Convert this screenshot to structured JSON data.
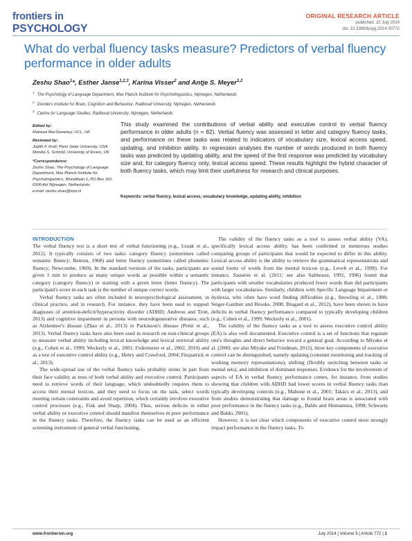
{
  "header": {
    "logo_top": "frontiers",
    "logo_in": "in",
    "logo_bottom": "PSYCHOLOGY",
    "article_type": "ORIGINAL RESEARCH ARTICLE",
    "published": "published: 22 July 2014",
    "doi": "doi: 10.3389/fpsyg.2014.00772"
  },
  "title": "What do verbal fluency tasks measure? Predictors of verbal fluency performance in older adults",
  "authors": "Zeshu Shao¹*, Esther Janse¹ʲ·³, Karina Visser² and Antje S. Meyer¹ʲ",
  "authors_plain": "Zeshu Shao 1*, Esther Janse 1,2,3, Karina Visser 2 and Antje S. Meyer 1,2",
  "affiliations": [
    {
      "num": "1",
      "text": "The Psychology of Language Department, Max Planck Institute for Psycholinguistics, Nijmegen, Netherlands"
    },
    {
      "num": "2",
      "text": "Donders Institute for Brain, Cognition and Behaviour, Radboud University, Nijmegen, Netherlands"
    },
    {
      "num": "3",
      "text": "Centre for Language Studies, Radboud University, Nijmegen, Netherlands"
    }
  ],
  "sidebar": {
    "edited_by_head": "Edited by:",
    "edited_by": "Mairead MacSweeney, UCL, UK",
    "reviewed_by_head": "Reviewed by:",
    "reviewer1": "Judith F. Kroll, Penn State University, USA",
    "reviewer2": "Monika S. Schmid, University of Essex, UK",
    "correspondence_head": "*Correspondence:",
    "correspondence": "Zeshu Shao, The Psychology of Language Department, Max Planck Institute for Psycholinguistics, Wundtlaan 1, PO Box 310, 6500 AH Nijmegen, Netherlands",
    "email": "e-mail: zeshu.shao@mpi.nl"
  },
  "abstract": "This study examined the contributions of verbal ability and executive control to verbal fluency performance in older adults (n = 82). Verbal fluency was assessed in letter and category fluency tasks, and performance on these tasks was related to indicators of vocabulary size, lexical access speed, updating, and inhibition ability. In regression analyses the number of words produced in both fluency tasks was predicted by updating ability, and the speed of the first response was predicted by vocabulary size and, for category fluency only, lexical access speed. These results highlight the hybrid character of both fluency tasks, which may limit their usefulness for research and clinical purposes.",
  "keywords_label": "Keywords:",
  "keywords": "verbal fluency, lexical access, vocabulary knowledge, updating ability, inhibition",
  "body": {
    "intro_head": "INTRODUCTION",
    "left": [
      "The verbal fluency test is a short test of verbal functioning (e.g., Lezak et al., 2012). It typically consists of two tasks: category fluency (sometimes called semantic fluency; Benton, 1968) and letter fluency (sometimes called phonemic fluency; Newcombe, 1969). In the standard versions of the tasks, participants are given 1 min to produce as many unique words as possible within a semantic category (category fluency) or starting with a given letter (letter fluency). The participant's score in each task is the number of unique correct words.",
      "Verbal fluency tasks are often included in neuropsychological assessment, in clinical practice, and in research. For instance, they have been used to support diagnoses of attention-deficit/hyperactivity disorder (ADHD; Andreou and Trott, 2013) and cognitive impairment in persons with neurodegenerative diseases, such as Alzheimer's disease (Zhao et al., 2013) or Parkinson's disease (Pettit et al., 2013). Verbal fluency tasks have also been used in research on non-clinical groups to measure verbal ability including lexical knowledge and lexical retrieval ability (e.g., Cohen et al., 1999; Weckerly et al., 2001; Federmeier et al., 2002, 2010) and as a test of executive control ability (e.g., Henry and Crawford, 2004; Fitzpatrick et al., 2013).",
      "The wide-spread use of the verbal fluency tasks probably stems in part from their face validity as tests of both verbal ability and executive control: Participants need to retrieve words of their language, which undoubtedly requires them to access their mental lexicon, and they need to focus on the task, select words meeting certain constraints and avoid repetition, which certainly involves executive control processes (e.g., Fisk and Sharp, 2004). Thus, serious deficits in either verbal ability or executive control should manifest themselves in poor performance in the fluency tasks. Therefore, the fluency tasks can be used as an efficient screening instrument of general verbal functioning."
    ],
    "right": [
      "The validity of the fluency tasks as a tool to assess verbal ability (VA), specifically lexical access ability, has been confirmed in numerous studies comparing groups of participants that would be expected to differ in this ability. Lexical access ability is the ability to retrieve the grammatical representations and sound forms of words from the mental lexicon (e.g., Levelt et al., 1999). For instance, Sauséon et al. (2011; see also Salthouse, 1991, 1996) found that participants with smaller vocabularies produced fewer words than did participants with larger vocabularies. Similarly, children with Specific Language Impairment or dyslexia, who often have word finding difficulties (e.g., Snowling et al., 1988; Seiger-Gardner and Brooks, 2008; Bragard et al., 2012), have been shown to have deficits in verbal fluency performance compared to typically developing children (e.g., Cohen et al., 1999; Weckerly et al., 2001).",
      "The validity of the fluency tasks as a tool to assess executive control ability (EA) is also well documented. Executive control is a set of functions that regulate one's thoughts and direct behavior toward a general goal. According to Miyake et al. (2000; see also Miyake and Friedman, 2012), three key components of executive control can be distinguished, namely updating (constant monitoring and tracking of working memory representations), shifting (flexibly switching between tasks or mental sets), and inhibition of dominant responses. Evidence for the involvement of aspects of EA in verbal fluency performance comes, for instance, from studies showing that children with ADHD had lower scores in verbal fluency tasks than typically developing controls (e.g., Mahone et al., 2001; Takács et al., 2013), and from studies demonstrating that damage to frontal brain areas is associated with poor performance in the fluency tasks (e.g., Baldo and Shimamura, 1998; Schwartz and Baldo, 2001).",
      "However, it is not clear which components of executive control most strongly impact performance in the fluency tasks. To"
    ]
  },
  "footer": {
    "site": "www.frontiersin.org",
    "issue": "July 2014 | Volume 5 | Article 772 |",
    "page": "1"
  }
}
